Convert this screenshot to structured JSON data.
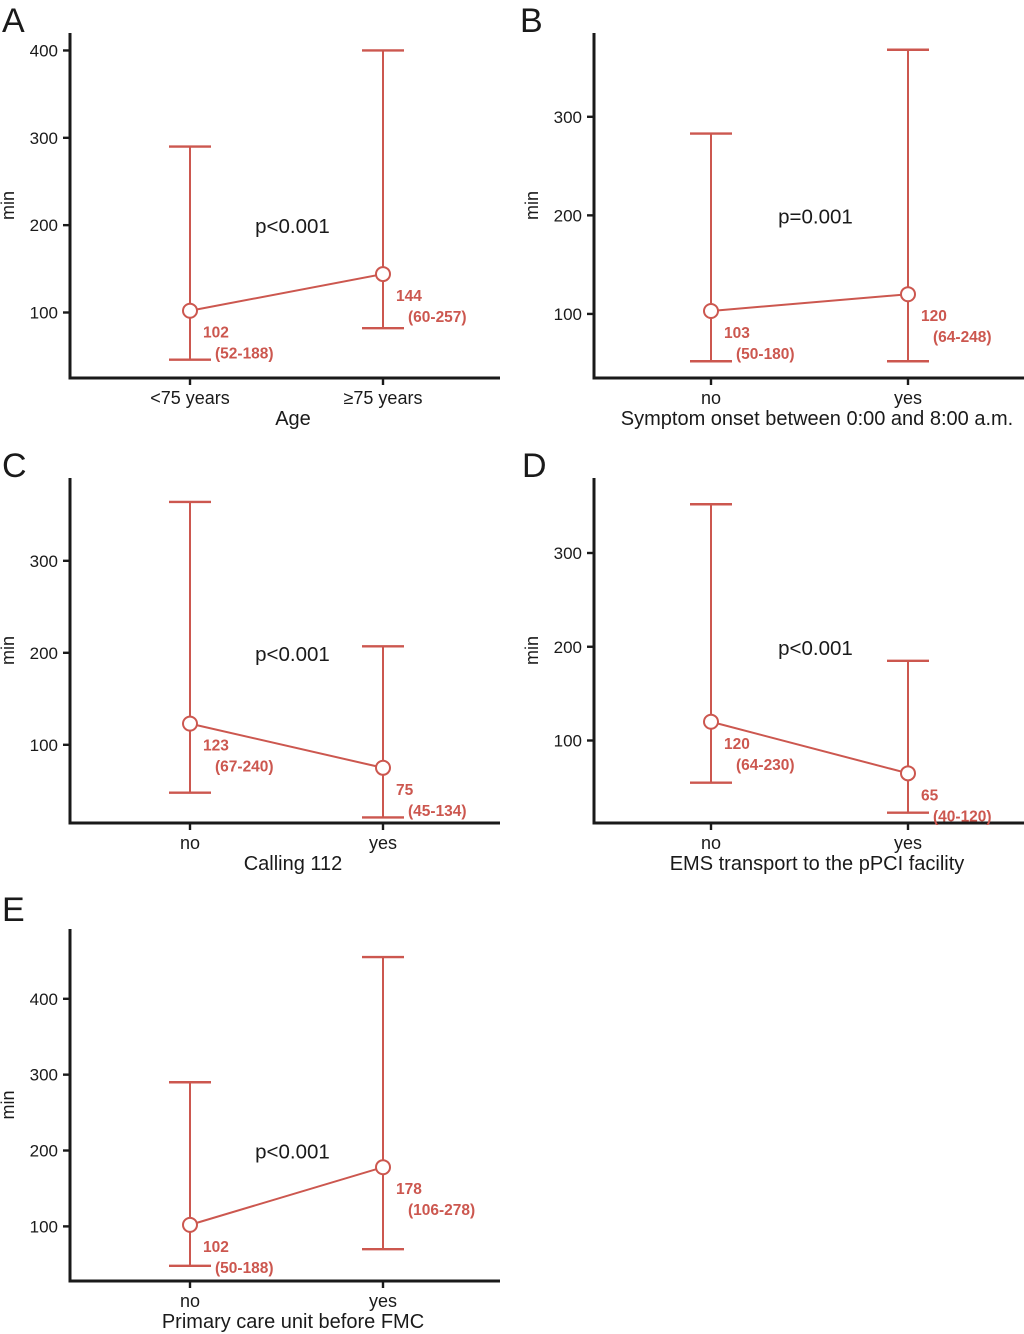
{
  "figure": {
    "background": "#ffffff",
    "accent_color": "#cc574f",
    "axis_color": "#1a1a1a",
    "units": "min"
  },
  "chart_data": {
    "type": "line",
    "subtype": "median-with-range-whiskers-two-group-comparison",
    "ylabel": "min",
    "panels": [
      {
        "panel_label": "A",
        "xlabel": "Age",
        "ylabel": "min",
        "p_value_label": "p<0.001",
        "categories": [
          "<75 years",
          "≥75 years"
        ],
        "yticks": [
          100,
          200,
          300,
          400
        ],
        "ylim": [
          25,
          420
        ],
        "series": [
          {
            "category": "<75 years",
            "median": 102,
            "median_label": "102",
            "iqr_label": "(52-188)",
            "iqr": [
              52,
              188
            ],
            "whiskers": [
              46,
              290
            ]
          },
          {
            "category": "≥75 years",
            "median": 144,
            "median_label": "144",
            "iqr_label": "(60-257)",
            "iqr": [
              60,
              257
            ],
            "whiskers": [
              82,
              400
            ]
          }
        ]
      },
      {
        "panel_label": "B",
        "xlabel": "Symptom onset between 0:00 and 8:00 a.m.",
        "ylabel": "min",
        "p_value_label": "p=0.001",
        "categories": [
          "no",
          "yes"
        ],
        "yticks": [
          100,
          200,
          300
        ],
        "ylim": [
          35,
          385
        ],
        "series": [
          {
            "category": "no",
            "median": 103,
            "median_label": "103",
            "iqr_label": "(50-180)",
            "iqr": [
              50,
              180
            ],
            "whiskers": [
              52,
              283
            ]
          },
          {
            "category": "yes",
            "median": 120,
            "median_label": "120",
            "iqr_label": "(64-248)",
            "iqr": [
              64,
              248
            ],
            "whiskers": [
              52,
              368
            ]
          }
        ]
      },
      {
        "panel_label": "C",
        "xlabel": "Calling 112",
        "ylabel": "min",
        "p_value_label": "p<0.001",
        "categories": [
          "no",
          "yes"
        ],
        "yticks": [
          100,
          200,
          300
        ],
        "ylim": [
          15,
          390
        ],
        "series": [
          {
            "category": "no",
            "median": 123,
            "median_label": "123",
            "iqr_label": "(67-240)",
            "iqr": [
              67,
              240
            ],
            "whiskers": [
              48,
              364
            ]
          },
          {
            "category": "yes",
            "median": 75,
            "median_label": "75",
            "iqr_label": "(45-134)",
            "iqr": [
              45,
              134
            ],
            "whiskers": [
              21,
              207
            ]
          }
        ]
      },
      {
        "panel_label": "D",
        "xlabel": "EMS transport to the pPCI facility",
        "ylabel": "min",
        "p_value_label": "p<0.001",
        "categories": [
          "no",
          "yes"
        ],
        "yticks": [
          100,
          200,
          300
        ],
        "ylim": [
          12,
          380
        ],
        "series": [
          {
            "category": "no",
            "median": 120,
            "median_label": "120",
            "iqr_label": "(64-230)",
            "iqr": [
              64,
              230
            ],
            "whiskers": [
              55,
              352
            ]
          },
          {
            "category": "yes",
            "median": 65,
            "median_label": "65",
            "iqr_label": "(40-120)",
            "iqr": [
              40,
              120
            ],
            "whiskers": [
              23,
              185
            ]
          }
        ]
      },
      {
        "panel_label": "E",
        "xlabel": "Primary care unit before FMC",
        "ylabel": "min",
        "p_value_label": "p<0.001",
        "categories": [
          "no",
          "yes"
        ],
        "yticks": [
          100,
          200,
          300,
          400
        ],
        "ylim": [
          28,
          492
        ],
        "series": [
          {
            "category": "no",
            "median": 102,
            "median_label": "102",
            "iqr_label": "(50-188)",
            "iqr": [
              50,
              188
            ],
            "whiskers": [
              48,
              290
            ]
          },
          {
            "category": "yes",
            "median": 178,
            "median_label": "178",
            "iqr_label": "(106-278)",
            "iqr": [
              106,
              278
            ],
            "whiskers": [
              70,
              455
            ]
          }
        ]
      }
    ]
  }
}
